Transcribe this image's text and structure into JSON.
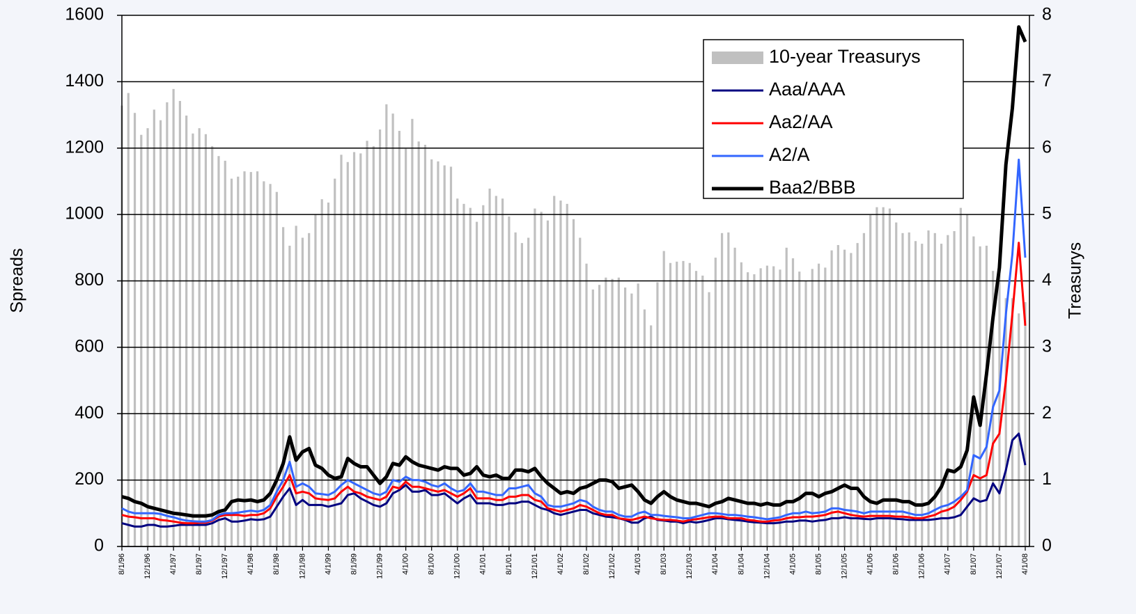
{
  "chart_data": {
    "type": "bar-line",
    "ylabel": "Spreads",
    "y2label": "Treasurys",
    "ylim": [
      0,
      1600
    ],
    "yticks": [
      0,
      200,
      400,
      600,
      800,
      1000,
      1200,
      1400,
      1600
    ],
    "y2lim": [
      0,
      8
    ],
    "y2ticks": [
      0,
      1,
      2,
      3,
      4,
      5,
      6,
      7,
      8
    ],
    "grid": true,
    "legend": "upper right",
    "categories": [
      "8/1/96",
      null,
      null,
      null,
      "12/1/96",
      null,
      null,
      null,
      "4/1/97",
      null,
      null,
      null,
      "8/1/97",
      null,
      null,
      null,
      "12/1/97",
      null,
      null,
      null,
      "4/1/98",
      null,
      null,
      null,
      "8/1/98",
      null,
      null,
      null,
      "12/1/98",
      null,
      null,
      null,
      "4/1/99",
      null,
      null,
      null,
      "8/1/99",
      null,
      null,
      null,
      "12/1/99",
      null,
      null,
      null,
      "4/1/00",
      null,
      null,
      null,
      "8/1/00",
      null,
      null,
      null,
      "12/1/00",
      null,
      null,
      null,
      "4/1/01",
      null,
      null,
      null,
      "8/1/01",
      null,
      null,
      null,
      "12/1/01",
      null,
      null,
      null,
      "4/1/02",
      null,
      null,
      null,
      "8/1/02",
      null,
      null,
      null,
      "12/1/02",
      null,
      null,
      null,
      "4/1/03",
      null,
      null,
      null,
      "8/1/03",
      null,
      null,
      null,
      "12/1/03",
      null,
      null,
      null,
      "4/1/04",
      null,
      null,
      null,
      "8/1/04",
      null,
      null,
      null,
      "12/1/04",
      null,
      null,
      null,
      "4/1/05",
      null,
      null,
      null,
      "8/1/05",
      null,
      null,
      null,
      "12/1/05",
      null,
      null,
      null,
      "4/1/06",
      null,
      null,
      null,
      "8/1/06",
      null,
      null,
      null,
      "12/1/06",
      null,
      null,
      null,
      "4/1/07",
      null,
      null,
      null,
      "8/1/07",
      null,
      null,
      null,
      "12/1/07",
      null,
      null,
      null,
      "4/1/08"
    ],
    "series": [
      {
        "name": "10-year Treasurys",
        "kind": "bar",
        "axis": "y2",
        "color": "#c0c0c0",
        "values": [
          6.64,
          6.83,
          6.53,
          6.2,
          6.3,
          6.58,
          6.42,
          6.69,
          6.89,
          6.71,
          6.49,
          6.22,
          6.3,
          6.21,
          6.03,
          5.88,
          5.81,
          5.54,
          5.57,
          5.65,
          5.64,
          5.65,
          5.5,
          5.46,
          5.34,
          4.81,
          4.53,
          4.83,
          4.65,
          4.72,
          5.0,
          5.23,
          5.18,
          5.54,
          5.9,
          5.79,
          5.94,
          5.92,
          6.11,
          6.03,
          6.28,
          6.66,
          6.52,
          6.26,
          5.99,
          6.44,
          6.1,
          6.05,
          5.83,
          5.8,
          5.74,
          5.72,
          5.24,
          5.16,
          5.1,
          4.89,
          5.14,
          5.39,
          5.28,
          5.24,
          4.97,
          4.73,
          4.57,
          4.65,
          5.09,
          5.04,
          4.91,
          5.28,
          5.21,
          5.16,
          4.93,
          4.65,
          4.26,
          3.87,
          3.94,
          4.05,
          4.03,
          4.05,
          3.9,
          3.81,
          3.96,
          3.57,
          3.33,
          3.98,
          4.45,
          4.27,
          4.29,
          4.3,
          4.27,
          4.15,
          4.08,
          3.83,
          4.35,
          4.72,
          4.73,
          4.5,
          4.28,
          4.13,
          4.1,
          4.19,
          4.23,
          4.22,
          4.17,
          4.5,
          4.34,
          4.14,
          4.0,
          4.18,
          4.26,
          4.2,
          4.46,
          4.54,
          4.47,
          4.42,
          4.57,
          4.72,
          4.99,
          5.11,
          5.11,
          5.09,
          4.88,
          4.72,
          4.73,
          4.6,
          4.56,
          4.76,
          4.72,
          4.56,
          4.69,
          4.75,
          5.1,
          5.0,
          4.67,
          4.52,
          4.53,
          4.15,
          4.1,
          3.74,
          3.74,
          3.51,
          3.68
        ]
      },
      {
        "name": "Aaa/AAA",
        "kind": "line",
        "color": "#000080",
        "width": 3,
        "values": [
          70,
          65,
          60,
          60,
          65,
          65,
          60,
          60,
          62,
          65,
          65,
          65,
          65,
          65,
          70,
          80,
          85,
          75,
          75,
          78,
          82,
          80,
          82,
          90,
          120,
          150,
          175,
          125,
          140,
          125,
          125,
          125,
          120,
          125,
          130,
          155,
          160,
          145,
          135,
          125,
          120,
          130,
          160,
          170,
          185,
          165,
          165,
          170,
          155,
          155,
          160,
          145,
          130,
          145,
          155,
          130,
          130,
          130,
          125,
          125,
          130,
          130,
          135,
          135,
          125,
          115,
          110,
          100,
          95,
          100,
          105,
          110,
          110,
          100,
          95,
          90,
          88,
          85,
          80,
          72,
          72,
          85,
          90,
          80,
          78,
          75,
          75,
          70,
          75,
          72,
          75,
          80,
          85,
          85,
          82,
          80,
          78,
          75,
          73,
          72,
          70,
          70,
          72,
          75,
          75,
          78,
          78,
          75,
          78,
          80,
          85,
          85,
          88,
          85,
          85,
          83,
          82,
          85,
          85,
          85,
          83,
          82,
          80,
          80,
          80,
          80,
          82,
          85,
          85,
          88,
          95,
          120,
          145,
          135,
          140,
          190,
          160,
          230,
          320,
          340,
          245
        ]
      },
      {
        "name": "Aa2/AA",
        "kind": "line",
        "color": "#ff0000",
        "width": 3,
        "values": [
          95,
          90,
          88,
          85,
          85,
          85,
          80,
          78,
          75,
          72,
          70,
          70,
          72,
          72,
          78,
          90,
          95,
          95,
          95,
          92,
          95,
          95,
          100,
          115,
          150,
          180,
          215,
          160,
          165,
          160,
          145,
          142,
          140,
          145,
          165,
          180,
          165,
          160,
          150,
          145,
          140,
          150,
          180,
          175,
          195,
          180,
          180,
          175,
          170,
          165,
          170,
          160,
          150,
          160,
          175,
          145,
          145,
          145,
          140,
          140,
          150,
          150,
          155,
          155,
          140,
          135,
          115,
          110,
          105,
          110,
          115,
          125,
          120,
          110,
          100,
          95,
          95,
          85,
          82,
          80,
          85,
          90,
          85,
          82,
          80,
          80,
          78,
          75,
          80,
          82,
          85,
          88,
          90,
          90,
          85,
          85,
          85,
          80,
          78,
          75,
          75,
          78,
          80,
          85,
          88,
          88,
          90,
          90,
          92,
          95,
          102,
          105,
          100,
          95,
          92,
          90,
          92,
          92,
          92,
          92,
          90,
          90,
          88,
          85,
          85,
          90,
          95,
          105,
          110,
          120,
          140,
          165,
          215,
          205,
          215,
          310,
          340,
          500,
          700,
          915,
          665
        ]
      },
      {
        "name": "A2/A",
        "kind": "line",
        "color": "#3366ff",
        "width": 3,
        "values": [
          115,
          105,
          100,
          100,
          100,
          100,
          98,
          92,
          88,
          82,
          78,
          76,
          75,
          75,
          80,
          95,
          100,
          100,
          102,
          105,
          108,
          105,
          110,
          125,
          165,
          200,
          255,
          180,
          190,
          180,
          160,
          158,
          155,
          165,
          185,
          200,
          190,
          180,
          170,
          160,
          155,
          165,
          200,
          195,
          210,
          200,
          200,
          195,
          185,
          180,
          190,
          175,
          165,
          170,
          190,
          165,
          165,
          160,
          155,
          155,
          175,
          175,
          180,
          185,
          160,
          150,
          125,
          120,
          120,
          125,
          130,
          140,
          135,
          120,
          110,
          105,
          105,
          95,
          90,
          90,
          100,
          105,
          95,
          95,
          92,
          90,
          88,
          85,
          85,
          90,
          95,
          100,
          100,
          98,
          95,
          95,
          93,
          90,
          88,
          85,
          82,
          85,
          88,
          95,
          100,
          100,
          105,
          100,
          102,
          105,
          115,
          115,
          110,
          108,
          105,
          100,
          105,
          105,
          105,
          105,
          105,
          105,
          100,
          95,
          95,
          100,
          110,
          120,
          125,
          135,
          150,
          170,
          275,
          265,
          300,
          420,
          470,
          700,
          880,
          1165,
          870
        ]
      },
      {
        "name": "Baa2/BBB",
        "kind": "line",
        "color": "#000000",
        "width": 5,
        "values": [
          150,
          145,
          135,
          130,
          120,
          115,
          110,
          105,
          100,
          98,
          95,
          92,
          92,
          92,
          95,
          105,
          110,
          135,
          140,
          138,
          140,
          135,
          140,
          160,
          200,
          250,
          330,
          260,
          285,
          295,
          245,
          235,
          215,
          205,
          210,
          265,
          250,
          240,
          240,
          215,
          190,
          210,
          250,
          245,
          270,
          255,
          245,
          240,
          235,
          230,
          240,
          235,
          235,
          215,
          220,
          240,
          215,
          210,
          215,
          205,
          205,
          230,
          230,
          225,
          235,
          210,
          190,
          175,
          160,
          165,
          160,
          175,
          180,
          190,
          200,
          200,
          195,
          175,
          180,
          185,
          165,
          140,
          130,
          150,
          165,
          150,
          140,
          135,
          130,
          130,
          125,
          120,
          130,
          135,
          145,
          140,
          135,
          130,
          130,
          125,
          130,
          125,
          125,
          135,
          135,
          145,
          160,
          160,
          150,
          160,
          165,
          175,
          185,
          175,
          175,
          150,
          135,
          130,
          140,
          140,
          140,
          135,
          135,
          125,
          125,
          130,
          150,
          180,
          230,
          225,
          240,
          290,
          450,
          365,
          520,
          690,
          840,
          1150,
          1320,
          1565,
          1520
        ]
      }
    ]
  }
}
